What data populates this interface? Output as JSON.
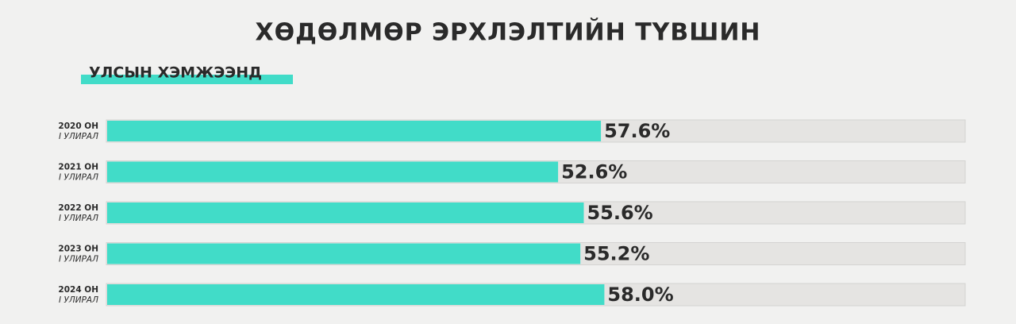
{
  "chart_data": {
    "type": "hbar",
    "title": "ХӨДӨЛМӨР ЭРХЛЭЛТИЙН ТҮВШИН",
    "subtitle": "УЛСЫН ХЭМЖЭЭНД",
    "categories": [
      "2020 ОН",
      "2021 ОН",
      "2022 ОН",
      "2023 ОН",
      "2024 ОН"
    ],
    "category_sublabels": [
      "I УЛИРАЛ",
      "I УЛИРАЛ",
      "I УЛИРАЛ",
      "I УЛИРАЛ",
      "I УЛИРАЛ"
    ],
    "values": [
      57.6,
      52.6,
      55.6,
      55.2,
      58.0
    ],
    "value_labels": [
      "57.6%",
      "52.6%",
      "55.6%",
      "55.2%",
      "58.0%"
    ],
    "color": "#41dcc8",
    "xlim": [
      0,
      100
    ]
  }
}
